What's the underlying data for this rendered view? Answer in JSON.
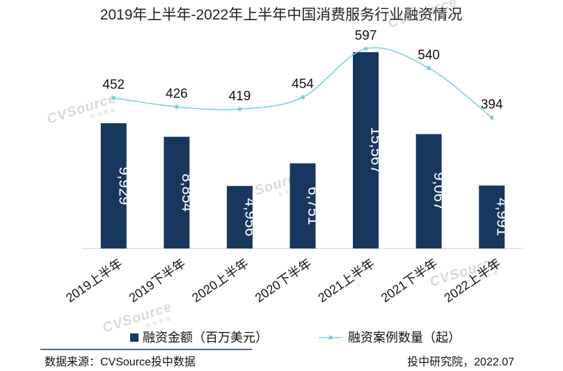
{
  "chart_data": {
    "type": "bar+line",
    "title": "2019年上半年-2022年上半年中国消费服务行业融资情况",
    "categories": [
      "2019上半年",
      "2019下半年",
      "2020上半年",
      "2020下半年",
      "2021上半年",
      "2021下半年",
      "2022上半年"
    ],
    "series": [
      {
        "name": "融资金额（百万美元）",
        "type": "bar",
        "values": [
          9929,
          8854,
          4956,
          6751,
          15567,
          9067,
          4991
        ],
        "labels": [
          "9,929",
          "8,854",
          "4,956",
          "6,751",
          "15,567",
          "9,067",
          "4,991"
        ],
        "color": "#17375e",
        "axis": "left",
        "ylim": [
          0,
          16000
        ]
      },
      {
        "name": "融资案例数量（起）",
        "type": "line",
        "values": [
          452,
          426,
          419,
          454,
          597,
          540,
          394
        ],
        "labels": [
          "452",
          "426",
          "419",
          "454",
          "597",
          "540",
          "394"
        ],
        "color": "#7ecfe0",
        "axis": "right",
        "ylim": [
          0,
          750
        ]
      }
    ]
  },
  "watermark": {
    "brand": "CVSource",
    "sub": "投中数据"
  },
  "footer": {
    "source": "数据来源：CVSource投中数据",
    "credit": "投中研究院，2022.07"
  }
}
